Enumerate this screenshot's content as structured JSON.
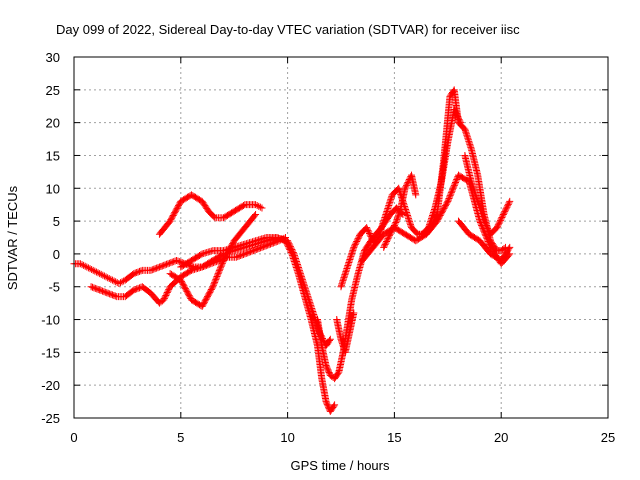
{
  "chart_data": {
    "type": "scatter",
    "title": "Day 099 of 2022, Sidereal Day-to-day VTEC variation (SDTVAR) for receiver iisc",
    "xlabel": "GPS time / hours",
    "ylabel": "SDTVAR / TECUs",
    "xlim": [
      0,
      25
    ],
    "ylim": [
      -25,
      30
    ],
    "xticks": [
      0,
      5,
      10,
      15,
      20,
      25
    ],
    "yticks": [
      -25,
      -20,
      -15,
      -10,
      -5,
      0,
      5,
      10,
      15,
      20,
      25,
      30
    ],
    "grid": true,
    "marker": "+",
    "color": "#ff0000",
    "series": [
      {
        "x": [
          0.0,
          0.3,
          0.6,
          0.9,
          1.2,
          1.5,
          1.8,
          2.1,
          2.4,
          2.8,
          3.2,
          3.6,
          4.0,
          4.4,
          4.8,
          5.2,
          5.6,
          6.0,
          6.4,
          6.8,
          7.2,
          7.6,
          8.0,
          8.4,
          8.8,
          9.2,
          9.6,
          9.9
        ],
        "y": [
          -1.5,
          -1.5,
          -2.0,
          -2.5,
          -3.0,
          -3.5,
          -4.0,
          -4.5,
          -4.0,
          -3.0,
          -2.5,
          -2.5,
          -2.0,
          -1.5,
          -1.0,
          -1.5,
          -2.0,
          -2.0,
          -1.5,
          -1.0,
          -0.5,
          -0.5,
          0.0,
          0.5,
          1.0,
          1.5,
          2.0,
          2.5
        ]
      },
      {
        "x": [
          0.8,
          1.2,
          1.6,
          2.0,
          2.4,
          2.8,
          3.2,
          3.6,
          4.0,
          4.2,
          4.5,
          5.0,
          5.5,
          6.0,
          6.5,
          7.0,
          7.5,
          8.0,
          8.5,
          9.0,
          9.5,
          10.0,
          10.3,
          10.6,
          10.9,
          11.2,
          11.5,
          11.8,
          12.0
        ],
        "y": [
          -5.0,
          -5.5,
          -6.0,
          -6.5,
          -6.5,
          -5.5,
          -5.0,
          -6.0,
          -7.5,
          -7.0,
          -5.0,
          -3.5,
          -2.5,
          -2.0,
          -1.0,
          0.0,
          0.5,
          1.0,
          1.5,
          2.0,
          2.5,
          2.0,
          0.0,
          -3.0,
          -6.0,
          -9.0,
          -12.0,
          -14.0,
          -13.0
        ]
      },
      {
        "x": [
          4.0,
          4.5,
          5.0,
          5.5,
          6.0,
          6.3,
          6.6,
          7.0,
          7.5,
          8.0,
          8.5,
          8.8
        ],
        "y": [
          3.0,
          5.0,
          8.0,
          9.0,
          8.0,
          6.5,
          5.5,
          5.5,
          6.5,
          7.5,
          7.5,
          7.0
        ]
      },
      {
        "x": [
          4.5,
          5.0,
          5.5,
          6.0,
          6.5,
          7.0,
          7.5,
          8.0,
          8.5
        ],
        "y": [
          -3.0,
          -4.0,
          -7.0,
          -8.0,
          -5.0,
          -1.0,
          2.0,
          4.0,
          6.0
        ]
      },
      {
        "x": [
          5.0,
          5.5,
          6.0,
          6.5,
          7.0,
          7.5,
          8.0,
          8.5,
          9.0,
          9.5,
          9.9,
          10.2,
          10.5,
          10.8,
          11.1,
          11.4,
          11.6,
          11.8,
          12.0,
          12.2
        ],
        "y": [
          -2.0,
          -1.0,
          0.0,
          0.5,
          0.5,
          1.0,
          1.5,
          2.0,
          2.5,
          2.5,
          2.0,
          0.0,
          -3.0,
          -6.5,
          -10.0,
          -14.0,
          -19.0,
          -22.5,
          -24.0,
          -23.0
        ]
      },
      {
        "x": [
          11.4,
          11.6,
          11.8,
          12.0,
          12.2,
          12.4,
          12.6,
          12.8,
          13.0,
          13.3,
          13.6,
          14.0,
          14.4,
          14.8,
          15.1,
          15.4
        ],
        "y": [
          -10.0,
          -14.0,
          -17.0,
          -18.5,
          -19.0,
          -18.0,
          -15.0,
          -11.0,
          -7.0,
          -3.0,
          0.5,
          2.5,
          4.0,
          6.0,
          7.0,
          6.0
        ]
      },
      {
        "x": [
          12.5,
          12.8,
          13.1,
          13.4,
          13.7,
          14.0,
          14.3,
          14.6,
          14.9,
          15.2,
          15.5,
          15.8,
          16.1,
          16.4,
          16.7,
          17.0,
          17.3,
          17.6,
          17.8,
          18.0,
          18.3,
          18.6,
          18.9,
          19.2,
          19.5,
          19.8,
          20.0,
          20.2
        ],
        "y": [
          -5.0,
          -2.0,
          1.0,
          3.0,
          4.0,
          2.0,
          3.0,
          6.0,
          9.0,
          10.0,
          7.0,
          4.0,
          3.0,
          3.0,
          4.0,
          6.0,
          14.0,
          24.0,
          25.0,
          20.0,
          19.0,
          16.0,
          12.0,
          6.0,
          2.0,
          0.5,
          0.5,
          1.0
        ]
      },
      {
        "x": [
          13.5,
          14.0,
          14.5,
          15.0,
          15.5,
          16.0,
          16.5,
          17.0,
          17.5,
          18.0,
          18.5,
          19.0,
          19.5,
          20.0,
          20.4
        ],
        "y": [
          -1.0,
          1.0,
          3.0,
          4.0,
          3.0,
          2.0,
          3.0,
          5.0,
          8.0,
          12.0,
          11.0,
          5.0,
          1.0,
          -1.5,
          0.0
        ]
      },
      {
        "x": [
          18.3,
          18.6,
          18.9,
          19.2,
          19.5,
          19.8,
          20.1,
          20.4
        ],
        "y": [
          15.0,
          11.0,
          8.0,
          5.0,
          3.0,
          4.0,
          6.0,
          8.0
        ]
      },
      {
        "x": [
          18.0,
          18.5,
          19.0,
          19.5,
          20.0,
          20.4
        ],
        "y": [
          5.0,
          3.0,
          2.0,
          0.0,
          -1.0,
          1.0
        ]
      },
      {
        "x": [
          16.3,
          16.6,
          16.9,
          17.2,
          17.5,
          17.8,
          18.1
        ],
        "y": [
          3.0,
          4.0,
          7.0,
          11.0,
          17.0,
          22.0,
          20.0
        ]
      },
      {
        "x": [
          12.3,
          12.5,
          12.7,
          12.9,
          13.1
        ],
        "y": [
          -10.0,
          -13.0,
          -15.0,
          -12.0,
          -9.0
        ]
      },
      {
        "x": [
          14.5,
          14.8,
          15.1,
          15.3,
          15.5,
          15.8,
          16.0
        ],
        "y": [
          1.0,
          3.0,
          5.0,
          7.0,
          10.0,
          12.0,
          9.0
        ]
      }
    ]
  }
}
